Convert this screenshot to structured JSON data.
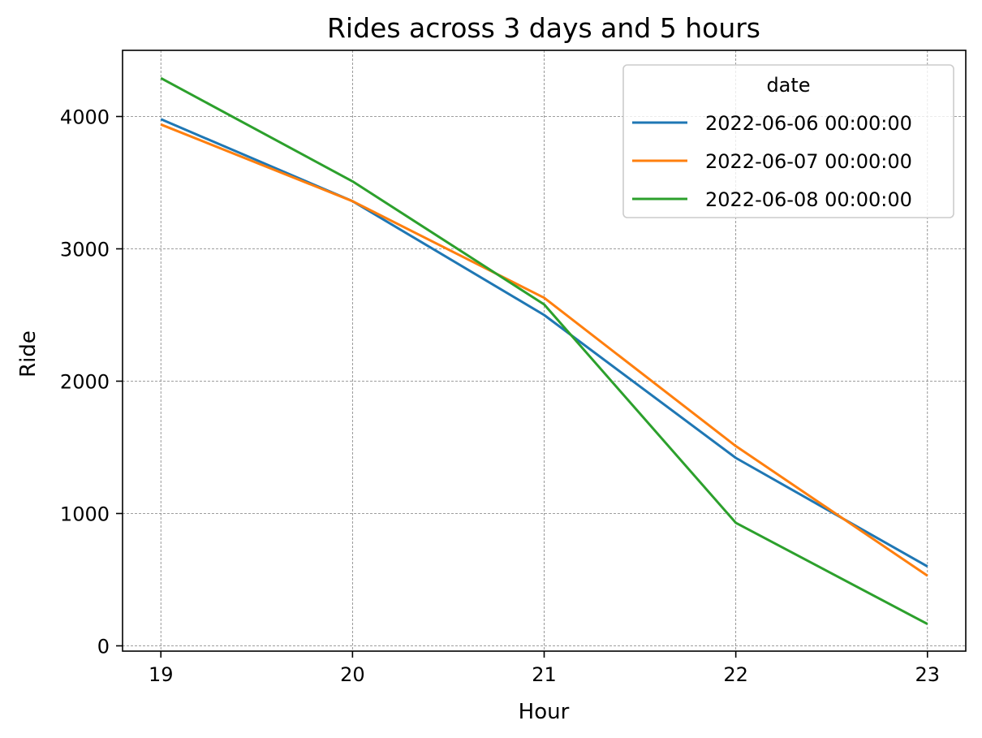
{
  "chart_data": {
    "type": "line",
    "title": "Rides across 3 days and 5 hours",
    "xlabel": "Hour",
    "ylabel": "Ride",
    "x": [
      19,
      20,
      21,
      22,
      23
    ],
    "xlim": [
      18.8,
      23.2
    ],
    "ylim": [
      -40,
      4500
    ],
    "yticks": [
      0,
      1000,
      2000,
      3000,
      4000
    ],
    "xticks": [
      19,
      20,
      21,
      22,
      23
    ],
    "grid": true,
    "legend": {
      "title": "date",
      "placement": "top-right"
    },
    "series": [
      {
        "name": "2022-06-06 00:00:00",
        "color": "#1f77b4",
        "values": [
          3980,
          3360,
          2500,
          1420,
          600
        ]
      },
      {
        "name": "2022-06-07 00:00:00",
        "color": "#ff7f0e",
        "values": [
          3940,
          3360,
          2630,
          1510,
          530
        ]
      },
      {
        "name": "2022-06-08 00:00:00",
        "color": "#2ca02c",
        "values": [
          4290,
          3510,
          2580,
          930,
          165
        ]
      }
    ]
  }
}
